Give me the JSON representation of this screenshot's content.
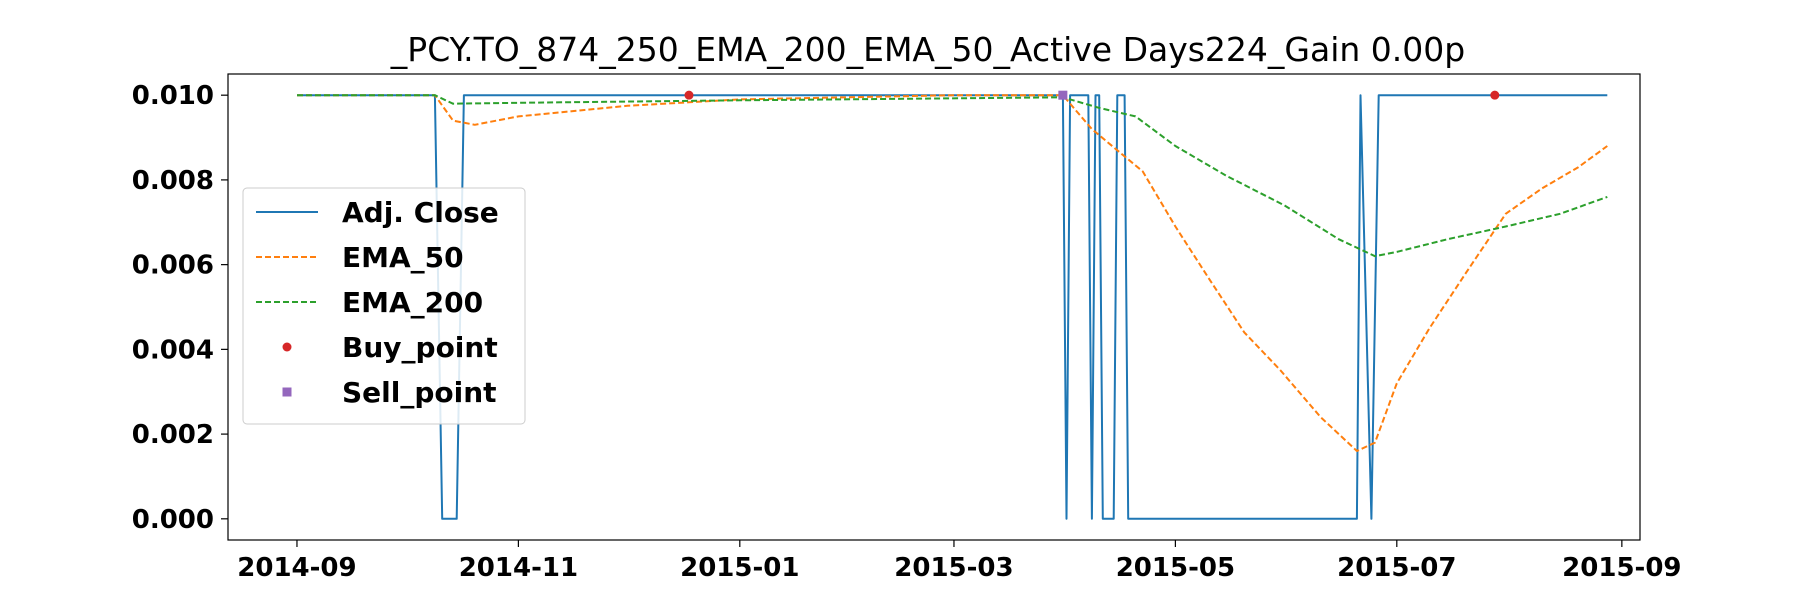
{
  "chart_data": {
    "type": "line",
    "title": "_PCY.TO_874_250_EMA_200_EMA_50_Active Days224_Gain   0.00p",
    "xlabel": "",
    "ylabel": "",
    "x_axis_type": "date",
    "xlim": [
      "2014-08-13",
      "2015-09-06"
    ],
    "ylim": [
      -0.0005,
      0.0105
    ],
    "x_ticks": [
      "2014-09-01",
      "2014-11-01",
      "2015-01-01",
      "2015-03-01",
      "2015-05-01",
      "2015-07-01",
      "2015-09-01"
    ],
    "x_tick_labels": [
      "2014-09",
      "2014-11",
      "2015-01",
      "2015-03",
      "2015-05",
      "2015-07",
      "2015-09"
    ],
    "y_ticks": [
      0.0,
      0.002,
      0.004,
      0.006,
      0.008,
      0.01
    ],
    "y_tick_labels": [
      "0.000",
      "0.002",
      "0.004",
      "0.006",
      "0.008",
      "0.010"
    ],
    "grid": false,
    "legend_position": "center-left",
    "series": [
      {
        "name": "Adj. Close",
        "color": "#1f77b4",
        "style": "solid",
        "points": [
          [
            "2014-09-01",
            0.01
          ],
          [
            "2014-10-09",
            0.01
          ],
          [
            "2014-10-11",
            0.0
          ],
          [
            "2014-10-15",
            0.0
          ],
          [
            "2014-10-17",
            0.01
          ],
          [
            "2015-03-31",
            0.01
          ],
          [
            "2015-04-01",
            0.0
          ],
          [
            "2015-04-02",
            0.01
          ],
          [
            "2015-04-07",
            0.01
          ],
          [
            "2015-04-08",
            0.0
          ],
          [
            "2015-04-09",
            0.01
          ],
          [
            "2015-04-10",
            0.01
          ],
          [
            "2015-04-11",
            0.0
          ],
          [
            "2015-04-14",
            0.0
          ],
          [
            "2015-04-15",
            0.01
          ],
          [
            "2015-04-17",
            0.01
          ],
          [
            "2015-04-18",
            0.0
          ],
          [
            "2015-06-20",
            0.0
          ],
          [
            "2015-06-21",
            0.01
          ],
          [
            "2015-06-24",
            0.0
          ],
          [
            "2015-06-26",
            0.01
          ],
          [
            "2015-08-28",
            0.01
          ]
        ]
      },
      {
        "name": "EMA_50",
        "color": "#ff7f0e",
        "style": "dashed",
        "points": [
          [
            "2014-09-01",
            0.01
          ],
          [
            "2014-10-09",
            0.01
          ],
          [
            "2014-10-14",
            0.0094
          ],
          [
            "2014-10-20",
            0.0093
          ],
          [
            "2014-11-01",
            0.0095
          ],
          [
            "2014-12-01",
            0.00975
          ],
          [
            "2015-01-01",
            0.0099
          ],
          [
            "2015-03-01",
            0.01
          ],
          [
            "2015-03-31",
            0.01
          ],
          [
            "2015-04-03",
            0.0097
          ],
          [
            "2015-04-08",
            0.0092
          ],
          [
            "2015-04-15",
            0.0087
          ],
          [
            "2015-04-22",
            0.0082
          ],
          [
            "2015-05-01",
            0.0069
          ],
          [
            "2015-05-10",
            0.0057
          ],
          [
            "2015-05-20",
            0.0044
          ],
          [
            "2015-05-30",
            0.0035
          ],
          [
            "2015-06-10",
            0.0024
          ],
          [
            "2015-06-20",
            0.0016
          ],
          [
            "2015-06-25",
            0.0018
          ],
          [
            "2015-07-01",
            0.0032
          ],
          [
            "2015-07-10",
            0.0045
          ],
          [
            "2015-07-20",
            0.0058
          ],
          [
            "2015-07-31",
            0.0072
          ],
          [
            "2015-08-10",
            0.0078
          ],
          [
            "2015-08-20",
            0.0083
          ],
          [
            "2015-08-28",
            0.0088
          ]
        ]
      },
      {
        "name": "EMA_200",
        "color": "#2ca02c",
        "style": "dashed",
        "points": [
          [
            "2014-09-01",
            0.01
          ],
          [
            "2014-10-09",
            0.01
          ],
          [
            "2014-10-14",
            0.0098
          ],
          [
            "2014-11-01",
            0.00982
          ],
          [
            "2015-01-01",
            0.00988
          ],
          [
            "2015-03-31",
            0.00995
          ],
          [
            "2015-04-10",
            0.0097
          ],
          [
            "2015-04-20",
            0.0095
          ],
          [
            "2015-05-01",
            0.0088
          ],
          [
            "2015-05-15",
            0.0081
          ],
          [
            "2015-05-31",
            0.0074
          ],
          [
            "2015-06-15",
            0.0066
          ],
          [
            "2015-06-25",
            0.0062
          ],
          [
            "2015-07-01",
            0.0063
          ],
          [
            "2015-07-15",
            0.0066
          ],
          [
            "2015-07-31",
            0.0069
          ],
          [
            "2015-08-15",
            0.0072
          ],
          [
            "2015-08-28",
            0.0076
          ]
        ]
      },
      {
        "name": "Buy_point",
        "color": "#d62728",
        "marker": "circle",
        "points": [
          [
            "2014-12-18",
            0.01
          ],
          [
            "2015-07-28",
            0.01
          ]
        ]
      },
      {
        "name": "Sell_point",
        "color": "#9467bd",
        "marker": "square",
        "points": [
          [
            "2015-03-31",
            0.01
          ]
        ]
      }
    ]
  }
}
